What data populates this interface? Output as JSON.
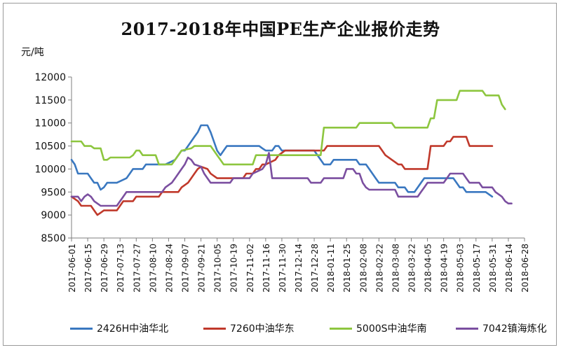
{
  "chart_data": {
    "type": "line",
    "title": "2017-2018年中国PE生产企业报价走势",
    "ylabel": "元/吨",
    "ylim": [
      8500,
      12000
    ],
    "yticks": [
      8500,
      9000,
      9500,
      10000,
      10500,
      11000,
      11500,
      12000
    ],
    "xticks": [
      "2017-06-01",
      "2017-06-15",
      "2017-06-29",
      "2017-07-13",
      "2017-07-27",
      "2017-08-10",
      "2017-08-24",
      "2017-09-07",
      "2017-09-21",
      "2017-10-05",
      "2017-10-19",
      "2017-11-02",
      "2017-11-16",
      "2017-11-30",
      "2017-12-14",
      "2017-12-28",
      "2018-01-11",
      "2018-01-25",
      "2018-02-08",
      "2018-02-22",
      "2018-03-08",
      "2018-03-22",
      "2018-04-05",
      "2018-04-19",
      "2018-05-03",
      "2018-05-17",
      "2018-05-31",
      "2018-06-14",
      "2018-06-28"
    ],
    "grid": false,
    "legend_position": "bottom",
    "series": [
      {
        "name": "2426H中油华北",
        "color": "#3a78c0",
        "points": [
          [
            0,
            10200
          ],
          [
            1,
            10100
          ],
          [
            2,
            9900
          ],
          [
            5,
            9900
          ],
          [
            6,
            9800
          ],
          [
            7,
            9700
          ],
          [
            8,
            9700
          ],
          [
            9,
            9550
          ],
          [
            10,
            9600
          ],
          [
            11,
            9700
          ],
          [
            14,
            9700
          ],
          [
            17,
            9800
          ],
          [
            18,
            9900
          ],
          [
            19,
            10000
          ],
          [
            22,
            10000
          ],
          [
            23,
            10100
          ],
          [
            28,
            10100
          ],
          [
            29,
            10100
          ],
          [
            32,
            10200
          ],
          [
            33,
            10300
          ],
          [
            34,
            10400
          ],
          [
            35,
            10400
          ],
          [
            36,
            10500
          ],
          [
            37,
            10600
          ],
          [
            38,
            10700
          ],
          [
            39,
            10800
          ],
          [
            40,
            10950
          ],
          [
            42,
            10950
          ],
          [
            43,
            10800
          ],
          [
            44,
            10600
          ],
          [
            45,
            10400
          ],
          [
            46,
            10300
          ],
          [
            47,
            10400
          ],
          [
            48,
            10500
          ],
          [
            55,
            10500
          ],
          [
            56,
            10500
          ],
          [
            58,
            10500
          ],
          [
            59,
            10450
          ],
          [
            60,
            10400
          ],
          [
            62,
            10400
          ],
          [
            63,
            10500
          ],
          [
            64,
            10500
          ],
          [
            65,
            10400
          ],
          [
            69,
            10400
          ],
          [
            75,
            10400
          ],
          [
            76,
            10300
          ],
          [
            77,
            10200
          ],
          [
            78,
            10100
          ],
          [
            80,
            10100
          ],
          [
            81,
            10200
          ],
          [
            88,
            10200
          ],
          [
            89,
            10100
          ],
          [
            91,
            10100
          ],
          [
            92,
            10000
          ],
          [
            93,
            9900
          ],
          [
            94,
            9800
          ],
          [
            95,
            9700
          ],
          [
            100,
            9700
          ],
          [
            101,
            9600
          ],
          [
            103,
            9600
          ],
          [
            104,
            9500
          ],
          [
            106,
            9500
          ],
          [
            107,
            9600
          ],
          [
            108,
            9700
          ],
          [
            109,
            9800
          ],
          [
            117,
            9800
          ],
          [
            118,
            9800
          ],
          [
            119,
            9700
          ],
          [
            120,
            9600
          ],
          [
            121,
            9600
          ],
          [
            122,
            9500
          ],
          [
            127,
            9500
          ],
          [
            128,
            9500
          ],
          [
            130,
            9400
          ]
        ]
      },
      {
        "name": "7260中油华东",
        "color": "#c0392b",
        "points": [
          [
            0,
            9400
          ],
          [
            2,
            9300
          ],
          [
            3,
            9200
          ],
          [
            6,
            9200
          ],
          [
            7,
            9100
          ],
          [
            8,
            9000
          ],
          [
            9,
            9050
          ],
          [
            10,
            9100
          ],
          [
            14,
            9100
          ],
          [
            15,
            9200
          ],
          [
            16,
            9300
          ],
          [
            19,
            9300
          ],
          [
            20,
            9400
          ],
          [
            27,
            9400
          ],
          [
            28,
            9500
          ],
          [
            33,
            9500
          ],
          [
            34,
            9600
          ],
          [
            36,
            9700
          ],
          [
            37,
            9800
          ],
          [
            38,
            9900
          ],
          [
            39,
            10000
          ],
          [
            40,
            10050
          ],
          [
            42,
            10000
          ],
          [
            43,
            9900
          ],
          [
            44,
            9850
          ],
          [
            45,
            9800
          ],
          [
            53,
            9800
          ],
          [
            54,
            9900
          ],
          [
            56,
            9900
          ],
          [
            57,
            10000
          ],
          [
            58,
            10000
          ],
          [
            59,
            10100
          ],
          [
            60,
            10100
          ],
          [
            63,
            10200
          ],
          [
            64,
            10300
          ],
          [
            65,
            10350
          ],
          [
            66,
            10400
          ],
          [
            78,
            10400
          ],
          [
            79,
            10500
          ],
          [
            95,
            10500
          ],
          [
            96,
            10400
          ],
          [
            97,
            10300
          ],
          [
            99,
            10200
          ],
          [
            100,
            10150
          ],
          [
            101,
            10100
          ],
          [
            102,
            10100
          ],
          [
            103,
            10000
          ],
          [
            105,
            10000
          ],
          [
            106,
            10000
          ],
          [
            110,
            10000
          ],
          [
            111,
            10500
          ],
          [
            115,
            10500
          ],
          [
            116,
            10600
          ],
          [
            117,
            10600
          ],
          [
            118,
            10700
          ],
          [
            122,
            10700
          ],
          [
            123,
            10500
          ],
          [
            130,
            10500
          ]
        ]
      },
      {
        "name": "5000S中油华南",
        "color": "#8dc63f",
        "points": [
          [
            0,
            10600
          ],
          [
            3,
            10600
          ],
          [
            4,
            10500
          ],
          [
            6,
            10500
          ],
          [
            7,
            10450
          ],
          [
            9,
            10450
          ],
          [
            10,
            10200
          ],
          [
            11,
            10200
          ],
          [
            12,
            10250
          ],
          [
            18,
            10250
          ],
          [
            19,
            10300
          ],
          [
            20,
            10400
          ],
          [
            21,
            10400
          ],
          [
            22,
            10300
          ],
          [
            26,
            10300
          ],
          [
            27,
            10100
          ],
          [
            28,
            10100
          ],
          [
            31,
            10100
          ],
          [
            32,
            10200
          ],
          [
            33,
            10300
          ],
          [
            34,
            10400
          ],
          [
            37,
            10450
          ],
          [
            38,
            10500
          ],
          [
            43,
            10500
          ],
          [
            44,
            10400
          ],
          [
            45,
            10300
          ],
          [
            46,
            10200
          ],
          [
            47,
            10100
          ],
          [
            56,
            10100
          ],
          [
            57,
            10300
          ],
          [
            77,
            10300
          ],
          [
            78,
            10900
          ],
          [
            88,
            10900
          ],
          [
            89,
            11000
          ],
          [
            99,
            11000
          ],
          [
            100,
            10900
          ],
          [
            110,
            10900
          ],
          [
            111,
            11100
          ],
          [
            112,
            11100
          ],
          [
            113,
            11500
          ],
          [
            119,
            11500
          ],
          [
            120,
            11700
          ],
          [
            127,
            11700
          ],
          [
            128,
            11600
          ],
          [
            132,
            11600
          ],
          [
            133,
            11400
          ],
          [
            134,
            11300
          ]
        ]
      },
      {
        "name": "7042镇海炼化",
        "color": "#7b4fa0",
        "points": [
          [
            0,
            9400
          ],
          [
            2,
            9400
          ],
          [
            3,
            9300
          ],
          [
            4,
            9400
          ],
          [
            5,
            9450
          ],
          [
            6,
            9400
          ],
          [
            7,
            9300
          ],
          [
            8,
            9250
          ],
          [
            9,
            9200
          ],
          [
            14,
            9200
          ],
          [
            15,
            9300
          ],
          [
            16,
            9400
          ],
          [
            17,
            9500
          ],
          [
            28,
            9500
          ],
          [
            29,
            9600
          ],
          [
            31,
            9700
          ],
          [
            32,
            9800
          ],
          [
            33,
            9900
          ],
          [
            34,
            10000
          ],
          [
            35,
            10100
          ],
          [
            36,
            10250
          ],
          [
            37,
            10200
          ],
          [
            38,
            10100
          ],
          [
            40,
            10050
          ],
          [
            41,
            9900
          ],
          [
            42,
            9800
          ],
          [
            43,
            9700
          ],
          [
            49,
            9700
          ],
          [
            50,
            9800
          ],
          [
            55,
            9800
          ],
          [
            56,
            9900
          ],
          [
            59,
            10000
          ],
          [
            60,
            10100
          ],
          [
            61,
            10350
          ],
          [
            62,
            9800
          ],
          [
            73,
            9800
          ],
          [
            74,
            9700
          ],
          [
            77,
            9700
          ],
          [
            78,
            9800
          ],
          [
            84,
            9800
          ],
          [
            85,
            10000
          ],
          [
            87,
            10000
          ],
          [
            88,
            9900
          ],
          [
            89,
            9900
          ],
          [
            90,
            9700
          ],
          [
            91,
            9600
          ],
          [
            92,
            9550
          ],
          [
            100,
            9550
          ],
          [
            101,
            9400
          ],
          [
            107,
            9400
          ],
          [
            108,
            9500
          ],
          [
            109,
            9600
          ],
          [
            110,
            9700
          ],
          [
            115,
            9700
          ],
          [
            116,
            9800
          ],
          [
            117,
            9900
          ],
          [
            121,
            9900
          ],
          [
            122,
            9800
          ],
          [
            123,
            9700
          ],
          [
            126,
            9700
          ],
          [
            127,
            9600
          ],
          [
            130,
            9600
          ],
          [
            131,
            9500
          ],
          [
            132,
            9450
          ],
          [
            133,
            9400
          ],
          [
            134,
            9300
          ],
          [
            135,
            9250
          ],
          [
            136,
            9250
          ]
        ]
      }
    ]
  }
}
